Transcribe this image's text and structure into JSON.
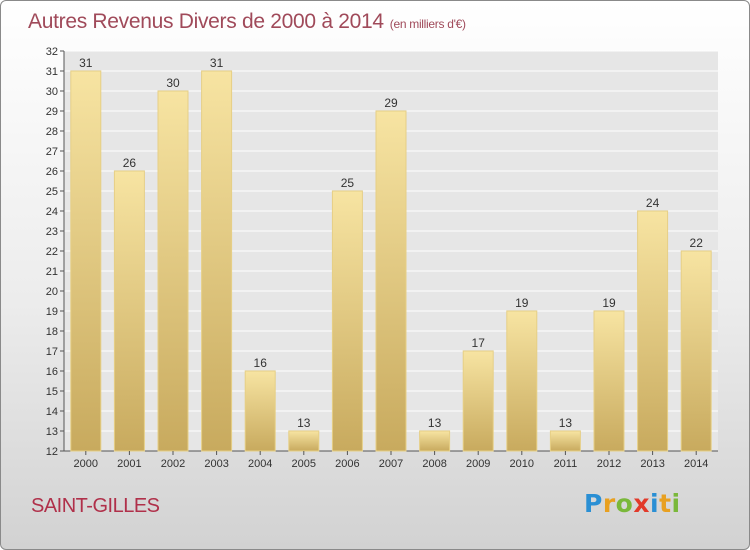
{
  "header": {
    "title": "Autres Revenus Divers de 2000 à 2014",
    "subtitle": "(en milliers d'€)"
  },
  "footer": {
    "place": "SAINT-GILLES",
    "brand": "Proxiti",
    "brand_letters": [
      "P",
      "r",
      "o",
      "x",
      "i",
      "t",
      "i"
    ],
    "brand_colors": [
      "#2a8fd4",
      "#e8a020",
      "#7ab83a",
      "#e23a2a",
      "#2a8fd4",
      "#e8a020",
      "#7ab83a"
    ]
  },
  "colors": {
    "bar_light": "#f7e4a2",
    "bar_dark": "#c8aa5e",
    "bar_edge": "#e6cf86",
    "plot_bg": "#e6e6e6",
    "grid": "#ffffff",
    "text": "#333333"
  },
  "chart_data": {
    "type": "bar",
    "categories": [
      "2000",
      "2001",
      "2002",
      "2003",
      "2004",
      "2005",
      "2006",
      "2007",
      "2008",
      "2009",
      "2010",
      "2011",
      "2012",
      "2013",
      "2014"
    ],
    "values": [
      31,
      26,
      30,
      31,
      16,
      13,
      25,
      29,
      13,
      17,
      19,
      13,
      19,
      24,
      22
    ],
    "ylim": [
      12,
      32
    ],
    "yticks": [
      12,
      13,
      14,
      15,
      16,
      17,
      18,
      19,
      20,
      21,
      22,
      23,
      24,
      25,
      26,
      27,
      28,
      29,
      30,
      31,
      32
    ],
    "grid": true,
    "legend": "none"
  }
}
